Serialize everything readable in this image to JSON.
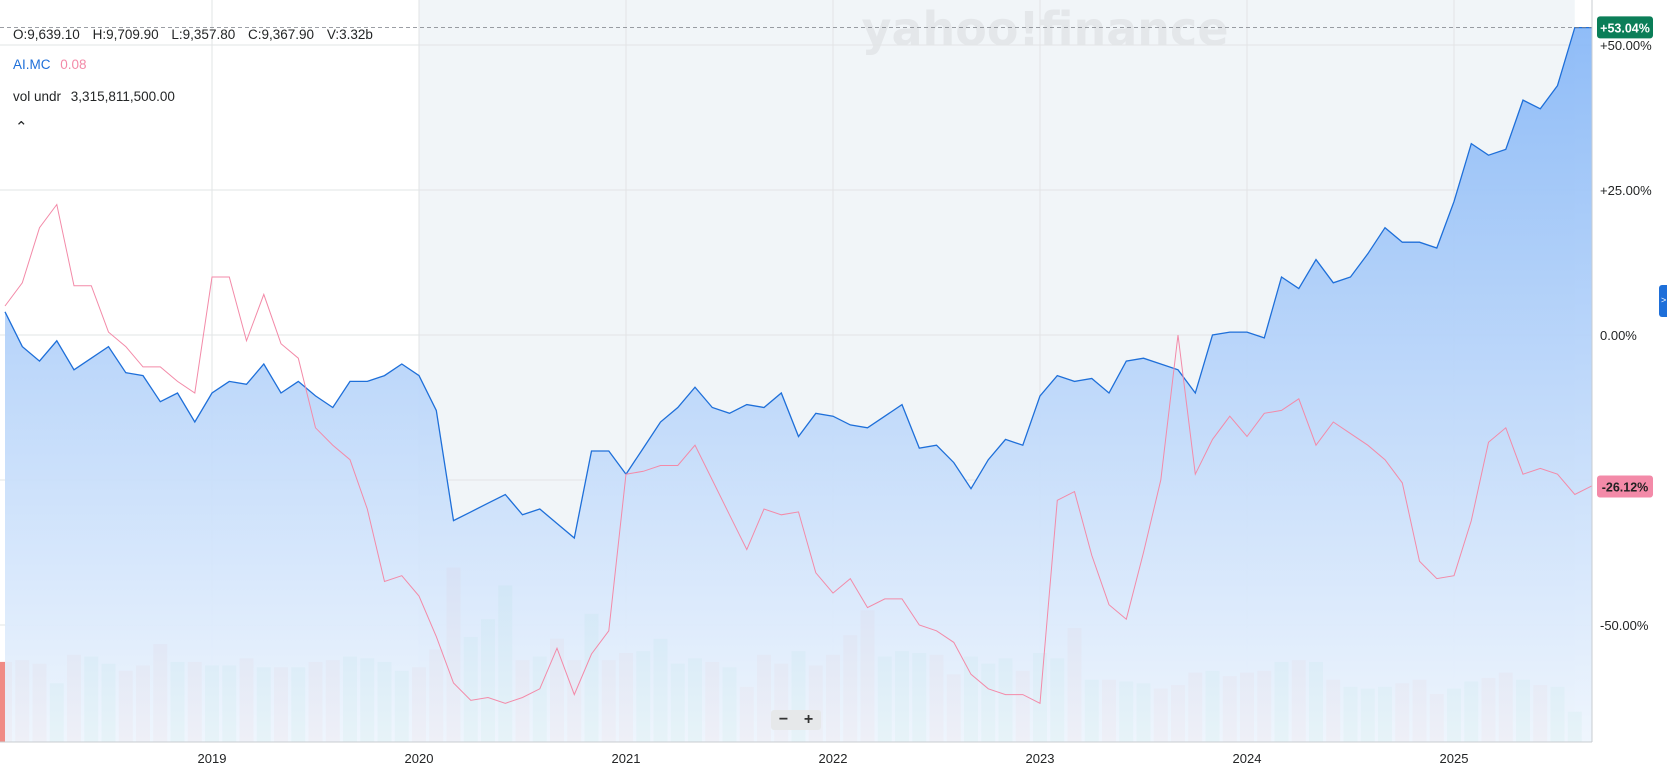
{
  "watermark": "yahoo!finance",
  "ohlc": {
    "open": "O:9,639.10",
    "high": "H:9,709.90",
    "low": "L:9,357.80",
    "close": "C:9,367.90",
    "volume": "V:3.32b"
  },
  "legend": {
    "symbol": "AI.MC",
    "compare_value": "0.08"
  },
  "volume_info": {
    "label": "vol undr",
    "value": "3,315,811,500.00"
  },
  "collapse_icon": "chevron-up-icon",
  "zoom": {
    "minus": "−",
    "plus": "+"
  },
  "colors": {
    "main_line": "#1e6fd9",
    "area_top": "#8ab9f7",
    "area_bottom": "#eef5fd",
    "compare_line": "#f38aa8",
    "vol_up": "#5ccda0",
    "vol_down": "#f08b85",
    "badge_main": "#0b7e58",
    "badge_compare": "#f38aa8"
  },
  "chart_data": {
    "type": "line",
    "x_tick_labels": [
      "2019",
      "2020",
      "2021",
      "2022",
      "2023",
      "2024",
      "2025"
    ],
    "x_range": [
      "2018-01",
      "2025-09"
    ],
    "y_tick_labels": [
      "+50.00%",
      "+25.00%",
      "0.00%",
      "-50.00%"
    ],
    "ylim": [
      -70,
      55
    ],
    "grid": true,
    "shaded_period": [
      "2020-01",
      "2025-08"
    ],
    "badges": [
      {
        "series": "AI.MC",
        "text": "+53.04%",
        "value": 53.04
      },
      {
        "series": "compare",
        "text": "-26.12%",
        "value": -26.12
      }
    ],
    "series": [
      {
        "name": "AI.MC",
        "values": [
          4,
          -2,
          -4.5,
          -1,
          -6,
          -4,
          -2,
          -6.5,
          -7,
          -11.5,
          -10,
          -15,
          -10,
          -8,
          -8.5,
          -5,
          -10,
          -8,
          -10.5,
          -12.5,
          -8,
          -8,
          -7,
          -5,
          -7,
          -13,
          -32,
          -30.5,
          -29,
          -27.5,
          -31,
          -30,
          -32.5,
          -35,
          -20,
          -20,
          -24,
          -19.5,
          -15,
          -12.5,
          -9,
          -12.5,
          -13.5,
          -12,
          -12.5,
          -10,
          -17.5,
          -13.5,
          -14,
          -15.5,
          -16,
          -14,
          -12,
          -19.5,
          -19,
          -22,
          -26.5,
          -21.5,
          -18,
          -19,
          -10.5,
          -7,
          -8,
          -7.5,
          -10,
          -4.5,
          -4,
          -5,
          -6,
          -10,
          0,
          0.5,
          0.5,
          -0.5,
          10,
          8,
          13,
          9,
          10,
          14,
          18.5,
          16,
          16,
          15,
          23,
          33,
          31,
          32,
          40.5,
          39,
          43,
          53,
          53
        ]
      },
      {
        "name": "compare",
        "values": [
          5,
          9,
          18.5,
          22.5,
          8.5,
          8.5,
          0.5,
          -2,
          -5.5,
          -5.5,
          -8,
          -10,
          10,
          10,
          -1,
          7,
          -1.5,
          -4,
          -16,
          -19,
          -21.5,
          -30,
          -42.5,
          -41.5,
          -45,
          -52,
          -60,
          -63,
          -62.5,
          -63.5,
          -62.5,
          -61,
          -54,
          -62,
          -55,
          -51,
          -24,
          -23.5,
          -22.5,
          -22.5,
          -19,
          -25,
          -31,
          -37,
          -30,
          -31,
          -30.5,
          -41,
          -44.5,
          -42,
          -47,
          -45.5,
          -45.5,
          -50,
          -51,
          -53,
          -58.5,
          -61,
          -62,
          -62,
          -63.5,
          -28.5,
          -27,
          -38,
          -46.5,
          -49,
          -37.5,
          -25,
          0,
          -24,
          -18,
          -14,
          -17.5,
          -13.5,
          -13,
          -11,
          -19,
          -15,
          -17,
          -19,
          -21.5,
          -25.5,
          -39,
          -42,
          -41.5,
          -32,
          -18.5,
          -16,
          -24,
          -23,
          -24,
          -27.5,
          -26
        ]
      }
    ],
    "volume": {
      "values": [
        0.45,
        0.46,
        0.44,
        0.33,
        0.49,
        0.48,
        0.44,
        0.4,
        0.43,
        0.55,
        0.45,
        0.45,
        0.43,
        0.43,
        0.47,
        0.42,
        0.42,
        0.42,
        0.45,
        0.46,
        0.48,
        0.47,
        0.45,
        0.4,
        0.42,
        0.52,
        0.98,
        0.59,
        0.69,
        0.88,
        0.46,
        0.48,
        0.58,
        0.46,
        0.72,
        0.46,
        0.5,
        0.51,
        0.58,
        0.44,
        0.47,
        0.45,
        0.42,
        0.31,
        0.49,
        0.44,
        0.51,
        0.43,
        0.49,
        0.6,
        0.74,
        0.48,
        0.51,
        0.5,
        0.49,
        0.38,
        0.48,
        0.44,
        0.47,
        0.4,
        0.5,
        0.47,
        0.64,
        0.35,
        0.35,
        0.34,
        0.33,
        0.3,
        0.32,
        0.39,
        0.4,
        0.37,
        0.39,
        0.4,
        0.45,
        0.46,
        0.45,
        0.35,
        0.31,
        0.3,
        0.31,
        0.33,
        0.35,
        0.27,
        0.3,
        0.34,
        0.36,
        0.39,
        0.35,
        0.32,
        0.31,
        0.17
      ],
      "direction": [
        "d",
        "d",
        "d",
        "u",
        "d",
        "u",
        "u",
        "d",
        "d",
        "d",
        "u",
        "d",
        "u",
        "u",
        "d",
        "u",
        "d",
        "u",
        "d",
        "d",
        "u",
        "u",
        "u",
        "u",
        "d",
        "d",
        "d",
        "u",
        "u",
        "u",
        "d",
        "u",
        "d",
        "d",
        "u",
        "d",
        "d",
        "u",
        "u",
        "u",
        "u",
        "d",
        "u",
        "d",
        "d",
        "d",
        "u",
        "d",
        "d",
        "d",
        "d",
        "u",
        "u",
        "u",
        "d",
        "d",
        "u",
        "u",
        "u",
        "d",
        "u",
        "u",
        "d",
        "u",
        "d",
        "u",
        "u",
        "d",
        "d",
        "d",
        "u",
        "d",
        "d",
        "d",
        "u",
        "d",
        "u",
        "d",
        "u",
        "u",
        "u",
        "d",
        "d",
        "d",
        "u",
        "u",
        "d",
        "d",
        "u",
        "d",
        "u",
        "u"
      ]
    }
  }
}
